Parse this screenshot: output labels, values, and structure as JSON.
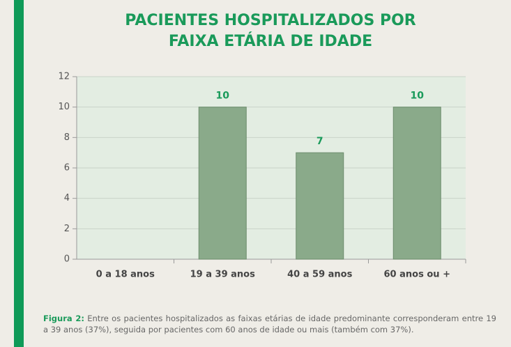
{
  "chart_data": {
    "type": "bar",
    "title_lines": [
      "PACIENTES HOSPITALIZADOS POR",
      "FAIXA ETÁRIA DE IDADE"
    ],
    "categories": [
      "0 a 18 anos",
      "19 a 39 anos",
      "40 a 59 anos",
      "60 anos ou +"
    ],
    "values": [
      null,
      10,
      7,
      10
    ],
    "color": "#8aaa8a",
    "ylim": [
      0,
      12
    ],
    "yticks": [
      0,
      2,
      4,
      6,
      8,
      10,
      12
    ],
    "grid": true,
    "caption_label": "Figura 2:",
    "caption": "Entre os pacientes hospitalizados as faixas etárias de idade predominante corresponderam entre 19 a 39 anos (37%), seguida por pacientes com 60 anos de idade ou mais (também com 37%)."
  }
}
